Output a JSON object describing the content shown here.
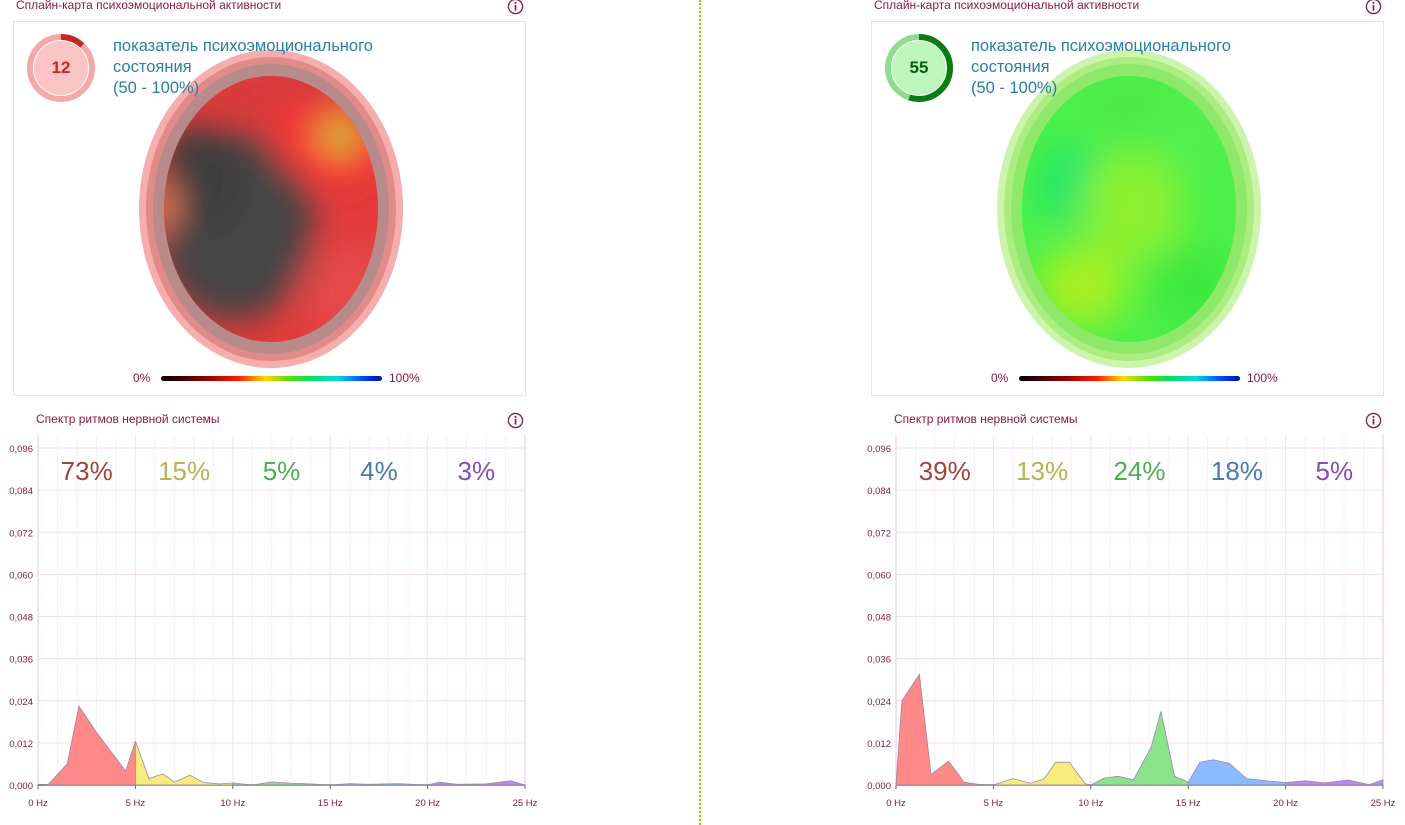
{
  "panels": [
    {
      "id": "left",
      "map_title": "Сплайн-карта психоэмоциональной активности",
      "score": {
        "value": "12",
        "progress": 0.12,
        "color": "#c62828",
        "track": "#f4a8a8",
        "fill": "#fbc4c4"
      },
      "score_text": {
        "line1": "показатель психоэмоционального",
        "line2": "состояния",
        "line3": "(50 - 100%)"
      },
      "legend": {
        "min": "0%",
        "max": "100%"
      },
      "spectrum_title": "Спектр ритмов нервной системы",
      "chart_data": {
        "type": "area",
        "ylim": [
          0,
          0.096
        ],
        "xlim": [
          0,
          25
        ],
        "y_ticks": [
          "0,000",
          "0,012",
          "0,024",
          "0,036",
          "0,048",
          "0,060",
          "0,072",
          "0,084",
          "0,096"
        ],
        "x_ticks": [
          "0 Hz",
          "5 Hz",
          "10 Hz",
          "15 Hz",
          "20 Hz",
          "25 Hz"
        ],
        "band_percents": [
          {
            "label": "73%",
            "color": "#a0443c"
          },
          {
            "label": "15%",
            "color": "#b8b255"
          },
          {
            "label": "5%",
            "color": "#4cb050"
          },
          {
            "label": "4%",
            "color": "#4a78b0"
          },
          {
            "label": "3%",
            "color": "#8a4cb0"
          }
        ],
        "series": [
          {
            "band": "delta",
            "fill": "#ff7b7b",
            "points": [
              [
                0.5,
                0
              ],
              [
                1.5,
                0.006
              ],
              [
                2.1,
                0.0225
              ],
              [
                3,
                0.015
              ],
              [
                4.5,
                0.004
              ],
              [
                5,
                0.0125
              ]
            ]
          },
          {
            "band": "theta",
            "fill": "#f6ea6e",
            "points": [
              [
                5,
                0.0125
              ],
              [
                5.7,
                0.0018
              ],
              [
                6.4,
                0.0032
              ],
              [
                7,
                0.0008
              ],
              [
                7.8,
                0.0028
              ],
              [
                8.5,
                0.0007
              ],
              [
                9.3,
                0.0003
              ],
              [
                10,
                0.0006
              ]
            ]
          },
          {
            "band": "alpha",
            "fill": "#7ee07e",
            "points": [
              [
                10,
                0.0006
              ],
              [
                11,
                0
              ],
              [
                12,
                0.0009
              ],
              [
                13,
                0.0005
              ],
              [
                14,
                0.0003
              ],
              [
                15,
                0
              ]
            ]
          },
          {
            "band": "beta",
            "fill": "#7fb3ff",
            "points": [
              [
                15,
                0
              ],
              [
                16,
                0.0004
              ],
              [
                17,
                0.0002
              ],
              [
                18.5,
                0.0004
              ],
              [
                20,
                0
              ]
            ]
          },
          {
            "band": "gamma",
            "fill": "#b07cf0",
            "points": [
              [
                20,
                0
              ],
              [
                20.6,
                0.0008
              ],
              [
                21.5,
                0.0002
              ],
              [
                23,
                0.0003
              ],
              [
                24.3,
                0.0012
              ],
              [
                25,
                0
              ]
            ]
          }
        ]
      }
    },
    {
      "id": "right",
      "map_title": "Сплайн-карта психоэмоциональной активности",
      "score": {
        "value": "55",
        "progress": 0.55,
        "color": "#0d7a14",
        "track": "#8fdc8f",
        "fill": "#bdf5bd"
      },
      "score_text": {
        "line1": "показатель психоэмоционального",
        "line2": "состояния",
        "line3": "(50 - 100%)"
      },
      "legend": {
        "min": "0%",
        "max": "100%"
      },
      "spectrum_title": "Спектр ритмов нервной системы",
      "chart_data": {
        "type": "area",
        "ylim": [
          0,
          0.096
        ],
        "xlim": [
          0,
          25
        ],
        "y_ticks": [
          "0,000",
          "0,012",
          "0,024",
          "0,036",
          "0,048",
          "0,060",
          "0,072",
          "0,084",
          "0,096"
        ],
        "x_ticks": [
          "0 Hz",
          "5 Hz",
          "10 Hz",
          "15 Hz",
          "20 Hz",
          "25 Hz"
        ],
        "band_percents": [
          {
            "label": "39%",
            "color": "#a0443c"
          },
          {
            "label": "13%",
            "color": "#b8b255"
          },
          {
            "label": "24%",
            "color": "#4cb050"
          },
          {
            "label": "18%",
            "color": "#4a78b0"
          },
          {
            "label": "5%",
            "color": "#8a4cb0"
          }
        ],
        "series": [
          {
            "band": "delta",
            "fill": "#ff7b7b",
            "points": [
              [
                0,
                0
              ],
              [
                0.3,
                0.024
              ],
              [
                1.2,
                0.0315
              ],
              [
                1.8,
                0.003
              ],
              [
                2.7,
                0.0068
              ],
              [
                3.5,
                0.0008
              ],
              [
                4.2,
                0.0002
              ],
              [
                5,
                0
              ]
            ]
          },
          {
            "band": "theta",
            "fill": "#f6ea6e",
            "points": [
              [
                5,
                0
              ],
              [
                6,
                0.0018
              ],
              [
                6.9,
                0.0005
              ],
              [
                7.6,
                0.0017
              ],
              [
                8.2,
                0.0065
              ],
              [
                8.9,
                0.0065
              ],
              [
                9.7,
                0.0004
              ],
              [
                10,
                0
              ]
            ]
          },
          {
            "band": "alpha",
            "fill": "#7ee07e",
            "points": [
              [
                10,
                0
              ],
              [
                10.7,
                0.002
              ],
              [
                11.4,
                0.0025
              ],
              [
                12.2,
                0.0015
              ],
              [
                13.1,
                0.0108
              ],
              [
                13.6,
                0.021
              ],
              [
                14.3,
                0.0025
              ],
              [
                15,
                0.0008
              ]
            ]
          },
          {
            "band": "beta",
            "fill": "#7fb3ff",
            "points": [
              [
                15,
                0.0008
              ],
              [
                15.6,
                0.0065
              ],
              [
                16.3,
                0.0072
              ],
              [
                17.1,
                0.0062
              ],
              [
                18,
                0.0018
              ],
              [
                19,
                0.0012
              ],
              [
                20,
                0.0007
              ]
            ]
          },
          {
            "band": "gamma",
            "fill": "#b07cf0",
            "points": [
              [
                20,
                0.0007
              ],
              [
                21,
                0.0012
              ],
              [
                22,
                0.0006
              ],
              [
                23.2,
                0.0014
              ],
              [
                24.3,
                0.0001
              ],
              [
                25,
                0.0015
              ]
            ]
          }
        ]
      }
    }
  ]
}
